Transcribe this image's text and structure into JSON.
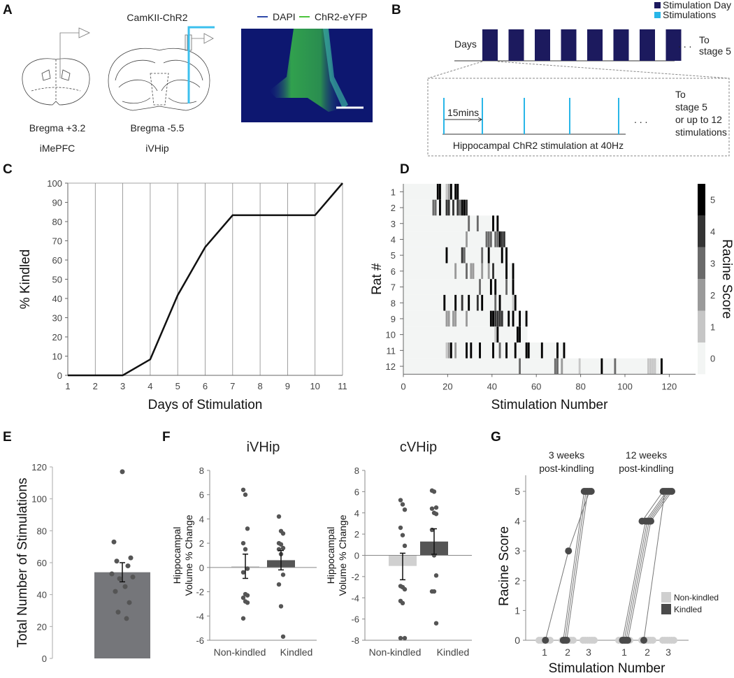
{
  "panels": {
    "A": {
      "label": "A",
      "construct": "CamKII-ChR2",
      "legend": [
        {
          "name": "DAPI",
          "color": "#2f4aa8"
        },
        {
          "name": "ChR2-eYFP",
          "color": "#4cc43c"
        }
      ],
      "sections": [
        {
          "bregma": "Bregma +3.2",
          "region": "iMePFC"
        },
        {
          "bregma": "Bregma -5.5",
          "region": "iVHip"
        }
      ]
    },
    "B": {
      "label": "B",
      "legend": [
        {
          "name": "Stimulation Day",
          "color": "#1c1a5e"
        },
        {
          "name": "Stimulations",
          "color": "#29b6e8"
        }
      ],
      "days_label": "Days",
      "n_days_shown": 8,
      "to_stage_top": [
        "To",
        "stage 5"
      ],
      "interval_label": "15mins",
      "protocol_label": "Hippocampal ChR2 stimulation at 40Hz",
      "to_stage_bottom": [
        "To",
        "stage 5",
        "or up to 12",
        "stimulations"
      ],
      "ellipsis": ". . .",
      "n_stims_shown": 5
    },
    "C": {
      "label": "C"
    },
    "D": {
      "label": "D"
    },
    "E": {
      "label": "E"
    },
    "F": {
      "label": "F"
    },
    "G": {
      "label": "G"
    }
  },
  "chart_data": [
    {
      "id": "C",
      "type": "line",
      "xlabel": "Days of Stimulation",
      "ylabel": "% Kindled",
      "x": [
        1,
        2,
        3,
        4,
        5,
        6,
        7,
        8,
        9,
        10,
        11
      ],
      "y": [
        0,
        0,
        0,
        8.3,
        41.7,
        66.7,
        83.3,
        83.3,
        83.3,
        83.3,
        100
      ],
      "ylim": [
        0,
        100
      ],
      "yticks": [
        0,
        10,
        20,
        30,
        40,
        50,
        60,
        70,
        80,
        90,
        100
      ],
      "grid": "vertical"
    },
    {
      "id": "D",
      "type": "heatmap",
      "xlabel": "Stimulation Number",
      "ylabel": "Rat #",
      "colorbar_label": "Racine Score",
      "xlim": [
        0,
        132
      ],
      "xticks": [
        0,
        20,
        40,
        60,
        80,
        100,
        120
      ],
      "colorbar_ticks": [
        0,
        1,
        2,
        3,
        4,
        5
      ],
      "score_colors": [
        "#f3f5f4",
        "#c6c6c6",
        "#9a9a9a",
        "#6a6a6a",
        "#343434",
        "#000000"
      ],
      "rats": [
        {
          "rat": "1",
          "last_stim": 25,
          "events": [
            [
              16,
              5
            ],
            [
              17,
              5
            ],
            [
              20,
              1
            ],
            [
              21,
              2
            ],
            [
              22,
              5
            ],
            [
              24,
              5
            ],
            [
              25,
              5
            ]
          ]
        },
        {
          "rat": "2",
          "last_stim": 29,
          "events": [
            [
              14,
              3
            ],
            [
              15,
              3
            ],
            [
              17,
              5
            ],
            [
              20,
              4
            ],
            [
              21,
              4
            ],
            [
              23,
              4
            ],
            [
              25,
              4
            ],
            [
              26,
              3
            ],
            [
              27,
              5
            ],
            [
              28,
              5
            ],
            [
              29,
              4
            ]
          ]
        },
        {
          "rat": "3",
          "last_stim": 43,
          "events": [
            [
              30,
              3
            ],
            [
              34,
              3
            ],
            [
              41,
              5
            ],
            [
              43,
              5
            ]
          ]
        },
        {
          "rat": "4",
          "last_stim": 46,
          "events": [
            [
              29,
              2
            ],
            [
              38,
              3
            ],
            [
              39,
              3
            ],
            [
              40,
              3
            ],
            [
              42,
              3
            ],
            [
              43,
              3
            ],
            [
              44,
              5
            ],
            [
              45,
              4
            ],
            [
              46,
              4
            ]
          ]
        },
        {
          "rat": "5",
          "last_stim": 47,
          "events": [
            [
              20,
              5
            ],
            [
              27,
              4
            ],
            [
              28,
              3
            ],
            [
              36,
              3
            ],
            [
              39,
              5
            ],
            [
              45,
              5
            ],
            [
              47,
              5
            ]
          ]
        },
        {
          "rat": "6",
          "last_stim": 50,
          "events": [
            [
              24,
              2
            ],
            [
              29,
              3
            ],
            [
              31,
              2
            ],
            [
              32,
              2
            ],
            [
              36,
              2
            ],
            [
              39,
              2
            ],
            [
              41,
              4
            ],
            [
              47,
              5
            ],
            [
              50,
              5
            ]
          ]
        },
        {
          "rat": "7",
          "last_stim": 50,
          "events": [
            [
              35,
              3
            ],
            [
              40,
              5
            ],
            [
              42,
              5
            ],
            [
              47,
              3
            ],
            [
              50,
              5
            ]
          ]
        },
        {
          "rat": "8",
          "last_stim": 51,
          "events": [
            [
              19,
              5
            ],
            [
              24,
              5
            ],
            [
              27,
              4
            ],
            [
              30,
              5
            ],
            [
              34,
              4
            ],
            [
              36,
              5
            ],
            [
              42,
              3
            ],
            [
              44,
              5
            ],
            [
              50,
              1
            ],
            [
              51,
              5
            ]
          ]
        },
        {
          "rat": "9",
          "last_stim": 56,
          "events": [
            [
              20,
              2
            ],
            [
              21,
              2
            ],
            [
              23,
              2
            ],
            [
              24,
              2
            ],
            [
              29,
              2
            ],
            [
              40,
              5
            ],
            [
              41,
              5
            ],
            [
              42,
              4
            ],
            [
              43,
              4
            ],
            [
              44,
              4
            ],
            [
              45,
              4
            ],
            [
              48,
              5
            ],
            [
              50,
              5
            ],
            [
              53,
              5
            ],
            [
              56,
              5
            ]
          ]
        },
        {
          "rat": "10",
          "last_stim": 56,
          "events": [
            [
              42,
              1
            ],
            [
              43,
              5
            ],
            [
              52,
              5
            ],
            [
              53,
              5
            ]
          ]
        },
        {
          "rat": "11",
          "last_stim": 73,
          "events": [
            [
              20,
              1
            ],
            [
              21,
              2
            ],
            [
              22,
              5
            ],
            [
              24,
              2
            ],
            [
              29,
              5
            ],
            [
              31,
              5
            ],
            [
              35,
              5
            ],
            [
              41,
              5
            ],
            [
              44,
              3
            ],
            [
              47,
              5
            ],
            [
              51,
              5
            ],
            [
              56,
              5
            ],
            [
              57,
              5
            ],
            [
              63,
              5
            ],
            [
              70,
              5
            ],
            [
              73,
              5
            ]
          ]
        },
        {
          "rat": "12",
          "last_stim": 117,
          "events": [
            [
              53,
              3
            ],
            [
              69,
              3
            ],
            [
              70,
              3
            ],
            [
              72,
              2
            ],
            [
              80,
              1
            ],
            [
              90,
              5
            ],
            [
              96,
              3
            ],
            [
              111,
              1
            ],
            [
              112,
              1
            ],
            [
              113,
              1
            ],
            [
              114,
              1
            ],
            [
              117,
              5
            ]
          ]
        }
      ]
    },
    {
      "id": "E",
      "type": "bar",
      "ylabel": "Total Number of Stimulations",
      "ylim": [
        0,
        120
      ],
      "yticks": [
        0,
        20,
        40,
        60,
        80,
        100,
        120
      ],
      "mean": 54,
      "sem": [
        48,
        60
      ],
      "points": [
        117,
        73,
        63,
        61,
        58,
        53,
        51,
        50,
        45,
        42,
        35,
        29,
        25
      ],
      "bar_color": "#75767a"
    },
    {
      "id": "F-iVHip",
      "type": "bar",
      "title": "iVHip",
      "ylabel": [
        "Hippocampal",
        "Volume % Change"
      ],
      "ylim": [
        -6,
        8
      ],
      "yticks": [
        -6,
        -4,
        -2,
        0,
        2,
        4,
        6,
        8
      ],
      "categories": [
        "Non-kindled",
        "Kindled"
      ],
      "means": [
        0.1,
        0.6
      ],
      "sem": [
        [
          -0.9,
          1.1
        ],
        [
          -0.2,
          1.4
        ]
      ],
      "colors": [
        "#d0d0d0",
        "#555555"
      ],
      "points": [
        [
          6.4,
          6.0,
          3.2,
          2.0,
          1.5,
          -0.1,
          -0.4,
          -2.2,
          -2.3,
          -2.5,
          -2.8,
          -2.9,
          -4.2
        ],
        [
          4.2,
          3.0,
          2.8,
          2.0,
          1.9,
          1.6,
          1.5,
          1.1,
          -0.6,
          -1.4,
          -3.2,
          -5.7
        ]
      ]
    },
    {
      "id": "F-cVHip",
      "type": "bar",
      "title": "cVHip",
      "ylabel": [
        "Hippocampal",
        "Volume % Change"
      ],
      "ylim": [
        -8,
        8
      ],
      "yticks": [
        -8,
        -6,
        -4,
        -2,
        0,
        2,
        4,
        6,
        8
      ],
      "categories": [
        "Non-kindled",
        "Kindled"
      ],
      "means": [
        -1.0,
        1.3
      ],
      "sem": [
        [
          -2.3,
          0.2
        ],
        [
          0.1,
          2.5
        ]
      ],
      "colors": [
        "#d0d0d0",
        "#555555"
      ],
      "points": [
        [
          5.2,
          4.8,
          4.3,
          2.6,
          1.9,
          0.9,
          -2.9,
          -3.0,
          -3.2,
          -4.3,
          -4.5,
          -7.8,
          -7.8
        ],
        [
          6.1,
          6.0,
          4.5,
          4.4,
          4.0,
          3.9,
          2.4,
          0,
          -1.9,
          -3.4,
          -3.4,
          -6.4
        ]
      ]
    },
    {
      "id": "G",
      "type": "line",
      "xlabel": "Stimulation Number",
      "ylabel": "Racine Score",
      "ylim": [
        0,
        5
      ],
      "yticks": [
        0,
        1,
        2,
        3,
        4,
        5
      ],
      "xticks": [
        1,
        2,
        3
      ],
      "legend": [
        {
          "name": "Non-kindled",
          "color": "#cfcfcf"
        },
        {
          "name": "Kindled",
          "color": "#4a4a4a"
        }
      ],
      "groups": [
        {
          "title": [
            "3 weeks",
            "post-kindling"
          ],
          "kindled": [
            [
              0,
              5
            ],
            [
              0,
              5
            ],
            [
              0,
              5
            ],
            [
              0,
              3,
              5
            ],
            [
              5
            ]
          ],
          "nonkindled_n": 6
        },
        {
          "title": [
            "12 weeks",
            "post-kindling"
          ],
          "kindled": [
            [
              4,
              5
            ],
            [
              0,
              5
            ],
            [
              0,
              4,
              5
            ],
            [
              0,
              4,
              5
            ],
            [
              0,
              4,
              5
            ],
            [
              0,
              4,
              5
            ]
          ],
          "nonkindled_n": 6
        }
      ]
    }
  ]
}
